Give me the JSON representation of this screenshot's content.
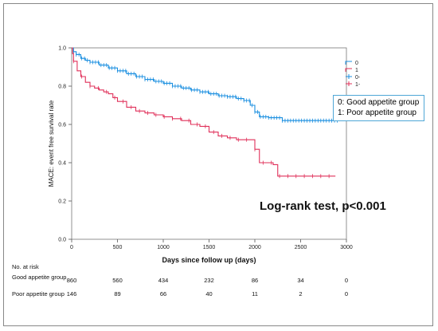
{
  "chart_data": {
    "type": "line",
    "xlabel": "Days since follow up (days)",
    "ylabel": "MACE: event free survival rate",
    "xlim": [
      0,
      3000
    ],
    "ylim": [
      0,
      1.0
    ],
    "x_ticks": [
      "0",
      "500",
      "1000",
      "1500",
      "2000",
      "2500",
      "3000"
    ],
    "y_ticks": [
      "0.0",
      "0.2",
      "0.4",
      "0.6",
      "0.8",
      "1.0"
    ],
    "grid": false,
    "legend": {
      "position": "top-right",
      "entries": [
        "0",
        "1",
        "0-",
        "1-"
      ],
      "colors": [
        "#1b8fe0",
        "#e0305a",
        "#1b8fe0",
        "#e0305a"
      ]
    },
    "series": [
      {
        "name": "0",
        "color": "#1b8fe0",
        "x": [
          0,
          20,
          50,
          100,
          150,
          200,
          300,
          400,
          500,
          600,
          700,
          800,
          900,
          1000,
          1100,
          1200,
          1300,
          1400,
          1500,
          1600,
          1700,
          1800,
          1880,
          1950,
          2000,
          2050,
          2150,
          2300,
          2500,
          2700,
          2900
        ],
        "y": [
          1.0,
          0.98,
          0.965,
          0.945,
          0.935,
          0.925,
          0.91,
          0.895,
          0.88,
          0.865,
          0.85,
          0.835,
          0.825,
          0.815,
          0.8,
          0.79,
          0.78,
          0.77,
          0.76,
          0.75,
          0.745,
          0.735,
          0.725,
          0.7,
          0.665,
          0.64,
          0.635,
          0.62,
          0.62,
          0.62,
          0.62
        ]
      },
      {
        "name": "1",
        "color": "#e0305a",
        "x": [
          0,
          10,
          20,
          60,
          100,
          150,
          200,
          250,
          300,
          350,
          400,
          450,
          500,
          600,
          700,
          800,
          900,
          1000,
          1100,
          1200,
          1300,
          1400,
          1500,
          1600,
          1700,
          1800,
          1900,
          2000,
          2050,
          2100,
          2150,
          2200,
          2250,
          2400,
          2600,
          2880
        ],
        "y": [
          1.0,
          0.97,
          0.93,
          0.88,
          0.85,
          0.82,
          0.8,
          0.79,
          0.78,
          0.77,
          0.76,
          0.74,
          0.72,
          0.69,
          0.67,
          0.66,
          0.65,
          0.64,
          0.63,
          0.62,
          0.6,
          0.59,
          0.56,
          0.54,
          0.53,
          0.52,
          0.52,
          0.47,
          0.4,
          0.4,
          0.4,
          0.39,
          0.33,
          0.33,
          0.33,
          0.33
        ]
      }
    ],
    "annotation": "Log-rank test, p<0.001",
    "group_legend": [
      "0: Good appetite group",
      "1: Poor appetite group"
    ]
  },
  "risk_table": {
    "title": "No. at risk",
    "rows": [
      {
        "label": "Good appetite group",
        "values": [
          "860",
          "560",
          "434",
          "232",
          "86",
          "34",
          "0"
        ]
      },
      {
        "label": "Poor appetite group",
        "values": [
          "146",
          "89",
          "66",
          "40",
          "11",
          "2",
          "0"
        ]
      }
    ]
  }
}
